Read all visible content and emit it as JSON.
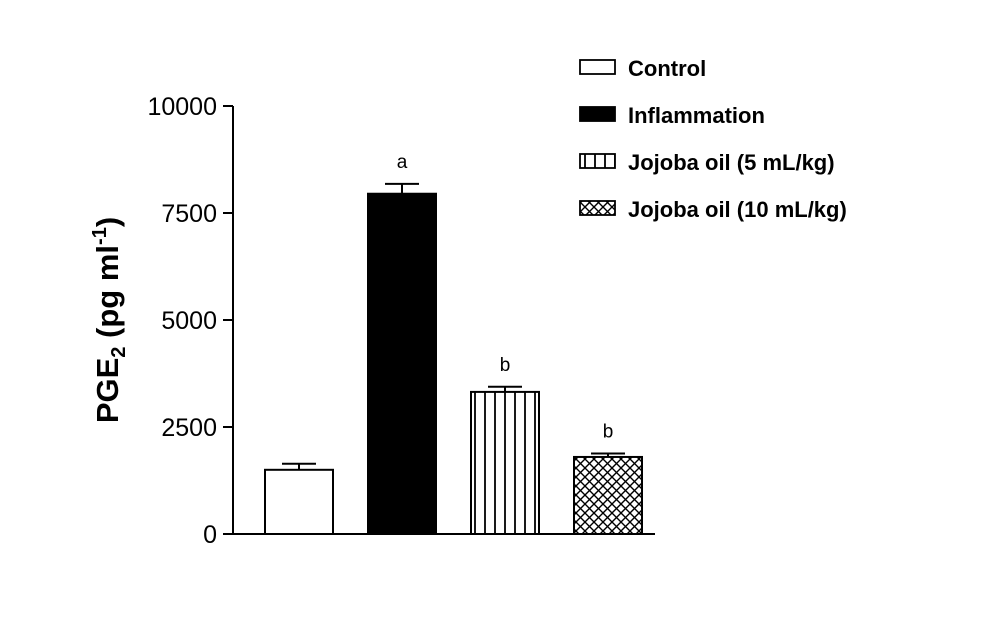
{
  "chart_data": {
    "type": "bar",
    "categories": [
      "Control",
      "Inflammation",
      "Jojoba oil (5 mL/kg)",
      "Jojoba oil (10 mL/kg)"
    ],
    "values": [
      1500,
      7950,
      3320,
      1800
    ],
    "errors": [
      140,
      230,
      120,
      80
    ],
    "significance": [
      "",
      "a",
      "b",
      "b"
    ],
    "fills": [
      "white",
      "black",
      "vertical-stripes",
      "crosshatch"
    ],
    "ylabel": {
      "main": "PGE",
      "sub": "2",
      "mid": " (pg ml",
      "sup": "-1",
      "end": ")"
    },
    "ylim": [
      0,
      10000
    ],
    "yticks": [
      "0",
      "2500",
      "5000",
      "7500",
      "10000"
    ],
    "legend": {
      "position": "top-right",
      "entries": [
        "Control",
        "Inflammation",
        "Jojoba oil (5 mL/kg)",
        "Jojoba oil (10 mL/kg)"
      ]
    },
    "grid": false
  }
}
